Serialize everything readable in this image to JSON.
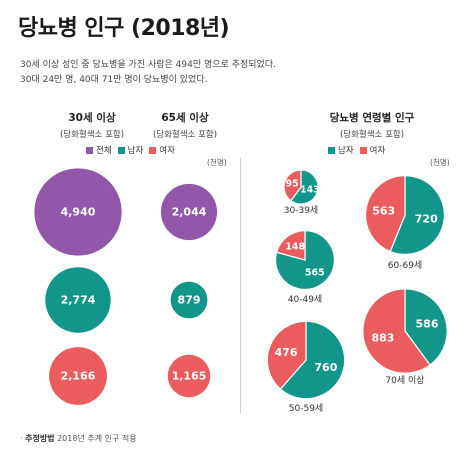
{
  "title": "당뇨병 인구 (2018년)",
  "subtitle_lines": [
    "30세 이상 성인 중 당뇨병을 가진 사람은 494만 명으로 추정되었다.",
    "30대 24만 명, 40대 71만 명이 당뇨병이 있었다."
  ],
  "colors": {
    "total": "#9257a9",
    "male": "#12968a",
    "female": "#ea5c5d"
  },
  "legend_left": [
    "전체",
    "남자",
    "여자"
  ],
  "legend_right": [
    "남자",
    "여자"
  ],
  "unit": "(천명)",
  "footnote": {
    "label": "추정방법",
    "text": "2018년 추계 인구 적용"
  },
  "chart_data": [
    {
      "type": "bubble",
      "title": "30세 이상",
      "subtitle": "(당화혈색소 포함)",
      "categories": [
        "전체",
        "남자",
        "여자"
      ],
      "values": [
        4940,
        2774,
        2166
      ],
      "labels": [
        "4,940",
        "2,774",
        "2,166"
      ]
    },
    {
      "type": "bubble",
      "title": "65세 이상",
      "subtitle": "(당화혈색소 포함)",
      "categories": [
        "전체",
        "남자",
        "여자"
      ],
      "values": [
        2044,
        879,
        1165
      ],
      "labels": [
        "2,044",
        "879",
        "1,165"
      ]
    },
    {
      "type": "pie",
      "title": "당뇨병 연령별 인구",
      "subtitle": "(당화혈색소 포함)",
      "series_names": [
        "남자",
        "여자"
      ],
      "groups": [
        {
          "label": "30-39세",
          "male": 143,
          "female": 95,
          "male_label": "143",
          "female_label": "95"
        },
        {
          "label": "40-49세",
          "male": 565,
          "female": 148,
          "male_label": "565",
          "female_label": "148"
        },
        {
          "label": "50-59세",
          "male": 760,
          "female": 476,
          "male_label": "760",
          "female_label": "476"
        },
        {
          "label": "60-69세",
          "male": 720,
          "female": 563,
          "male_label": "720",
          "female_label": "563"
        },
        {
          "label": "70세 이상",
          "male": 586,
          "female": 883,
          "male_label": "586",
          "female_label": "883"
        }
      ]
    }
  ]
}
